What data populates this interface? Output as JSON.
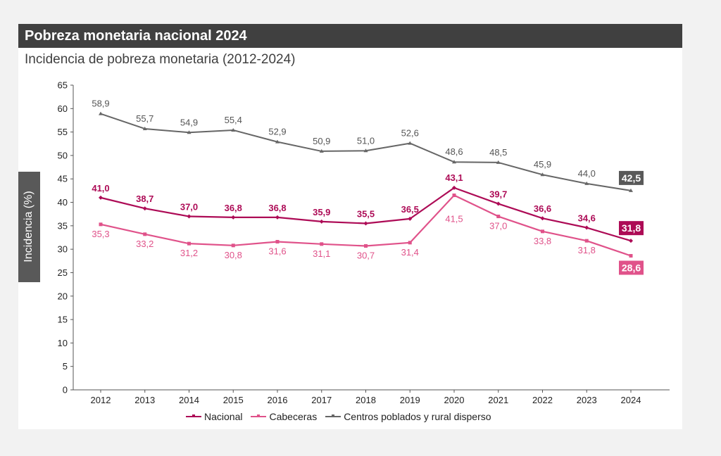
{
  "header": {
    "title": "Pobreza monetaria nacional 2024",
    "subtitle": "Incidencia de pobreza monetaria (2012-2024)"
  },
  "chart_data": {
    "type": "line",
    "ylabel": "Incidencia (%)",
    "ylim": [
      0,
      65
    ],
    "yticks": [
      "0",
      "5",
      "10",
      "15",
      "20",
      "25",
      "30",
      "35",
      "40",
      "45",
      "50",
      "55",
      "60",
      "65"
    ],
    "categories": [
      "2012",
      "2013",
      "2014",
      "2015",
      "2016",
      "2017",
      "2018",
      "2019",
      "2020",
      "2021",
      "2022",
      "2023",
      "2024"
    ],
    "series": [
      {
        "name": "Nacional",
        "color": "#ad0b56",
        "values": [
          41.0,
          38.7,
          37.0,
          36.8,
          36.8,
          35.9,
          35.5,
          36.5,
          43.1,
          39.7,
          36.6,
          34.6,
          31.8
        ],
        "labels": [
          "41,0",
          "38,7",
          "37,0",
          "36,8",
          "36,8",
          "35,9",
          "35,5",
          "36,5",
          "43,1",
          "39,7",
          "36,6",
          "34,6",
          "31,8"
        ]
      },
      {
        "name": "Cabeceras",
        "color": "#e0528a",
        "values": [
          35.3,
          33.2,
          31.2,
          30.8,
          31.6,
          31.1,
          30.7,
          31.4,
          41.5,
          37.0,
          33.8,
          31.8,
          28.6
        ],
        "labels": [
          "35,3",
          "33,2",
          "31,2",
          "30,8",
          "31,6",
          "31,1",
          "30,7",
          "31,4",
          "41,5",
          "37,0",
          "33,8",
          "31,8",
          "28,6"
        ]
      },
      {
        "name": "Centros poblados y rural disperso",
        "color": "#666666",
        "values": [
          58.9,
          55.7,
          54.9,
          55.4,
          52.9,
          50.9,
          51.0,
          52.6,
          48.6,
          48.5,
          45.9,
          44.0,
          42.5
        ],
        "labels": [
          "58,9",
          "55,7",
          "54,9",
          "55,4",
          "52,9",
          "50,9",
          "51,0",
          "52,6",
          "48,6",
          "48,5",
          "45,9",
          "44,0",
          "42,5"
        ]
      }
    ],
    "legend_position": "bottom",
    "grid": false
  }
}
